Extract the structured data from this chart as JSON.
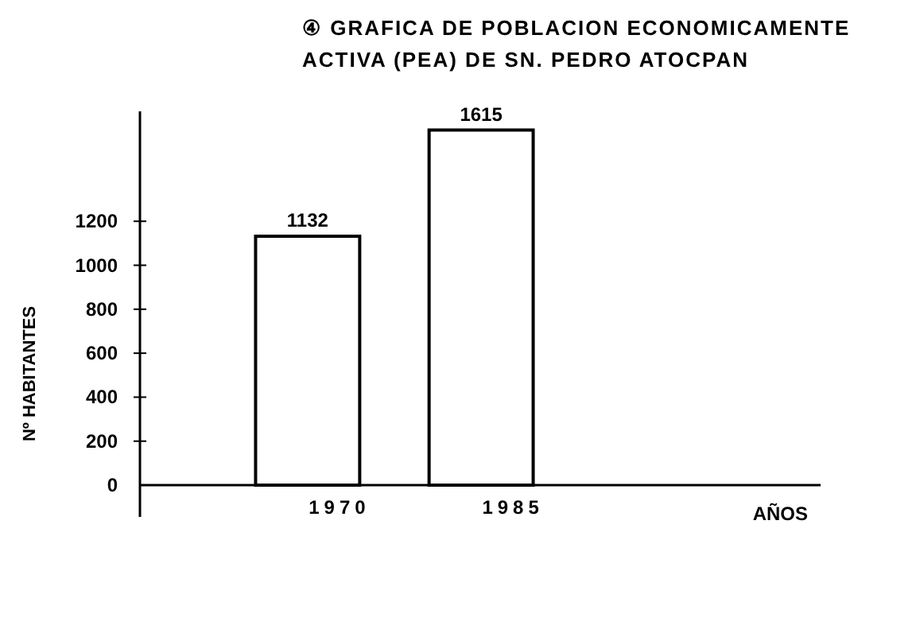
{
  "chart_data": {
    "type": "bar",
    "title": "④ GRAFICA DE POBLACION ECONOMICAMENTE\nACTIVA (PEA) DE SN. PEDRO ATOCPAN",
    "annotations": [
      "AÑOS"
    ],
    "ylabel": "Nº HABITANTES",
    "categories": [
      "1970",
      "1985"
    ],
    "values": [
      1132,
      1615
    ],
    "color": "#000000",
    "ylim": [
      0,
      1700
    ],
    "yticks": [
      0,
      200,
      400,
      600,
      800,
      1000,
      1200
    ],
    "data_labels": true
  }
}
